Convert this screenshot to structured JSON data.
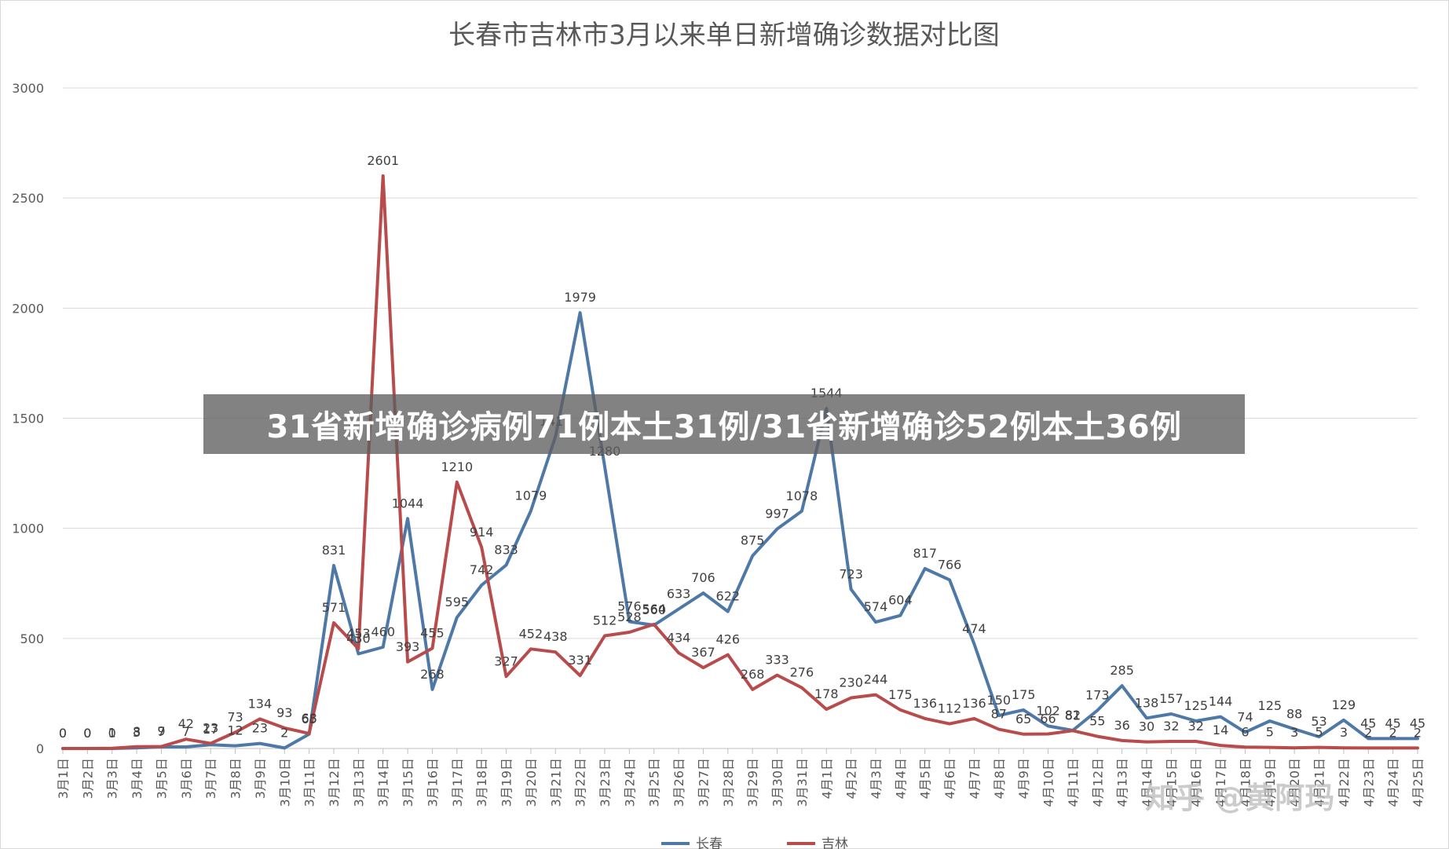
{
  "chart_data": {
    "type": "line",
    "title": "长春市吉林市3月以来单日新增确诊数据对比图",
    "xlabel": "",
    "ylabel": "",
    "ylim": [
      0,
      3000
    ],
    "yticks": [
      "0",
      "500",
      "1000",
      "1500",
      "2000",
      "2500",
      "3000"
    ],
    "grid": true,
    "legend": "bottom",
    "categories": [
      "3月1日",
      "3月2日",
      "3月3日",
      "3月4日",
      "3月5日",
      "3月6日",
      "3月7日",
      "3月8日",
      "3月9日",
      "3月10日",
      "3月11日",
      "3月12日",
      "3月13日",
      "3月14日",
      "3月15日",
      "3月16日",
      "3月17日",
      "3月18日",
      "3月19日",
      "3月20日",
      "3月21日",
      "3月22日",
      "3月23日",
      "3月24日",
      "3月25日",
      "3月26日",
      "3月27日",
      "3月28日",
      "3月29日",
      "3月30日",
      "3月31日",
      "4月1日",
      "4月2日",
      "4月3日",
      "4月4日",
      "4月5日",
      "4月6日",
      "4月7日",
      "4月8日",
      "4月9日",
      "4月10日",
      "4月11日",
      "4月12日",
      "4月13日",
      "4月14日",
      "4月15日",
      "4月16日",
      "4月17日",
      "4月18日",
      "4月19日",
      "4月20日",
      "4月21日",
      "4月22日",
      "4月23日",
      "4月24日",
      "4月25日"
    ],
    "series": [
      {
        "name": "长春",
        "color": "#4e79a7",
        "values": [
          0,
          0,
          0,
          3,
          7,
          7,
          17,
          12,
          23,
          2,
          65,
          831,
          430,
          460,
          1044,
          268,
          595,
          742,
          833,
          1079,
          1417,
          1979,
          1280,
          576,
          560,
          633,
          706,
          622,
          875,
          997,
          1078,
          1544,
          723,
          574,
          604,
          817,
          766,
          474,
          150,
          175,
          102,
          82,
          173,
          285,
          138,
          157,
          125,
          144,
          74,
          125,
          88,
          53,
          129,
          45,
          45,
          45
        ]
      },
      {
        "name": "吉林",
        "color": "#b84c4c",
        "values": [
          0,
          0,
          1,
          8,
          9,
          42,
          23,
          73,
          134,
          93,
          68,
          571,
          453,
          2601,
          393,
          455,
          1210,
          914,
          327,
          452,
          438,
          331,
          512,
          528,
          564,
          434,
          367,
          426,
          268,
          333,
          276,
          178,
          230,
          244,
          175,
          136,
          112,
          136,
          87,
          65,
          66,
          81,
          55,
          36,
          30,
          32,
          32,
          14,
          6,
          5,
          3,
          5,
          3,
          2,
          2,
          2
        ]
      }
    ]
  },
  "banner_text": "31省新增确诊病例71例本土31例/31省新增确诊52例本土36例",
  "watermark_text": "知乎 @黄阿玛"
}
